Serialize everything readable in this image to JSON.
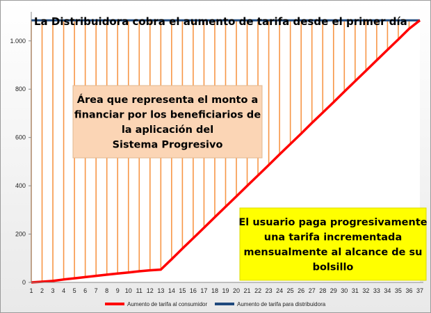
{
  "chart_data": {
    "type": "line",
    "title": "La Distribuidora cobra el aumento de tarifa desde el primer día",
    "x": [
      1,
      2,
      3,
      4,
      5,
      6,
      7,
      8,
      9,
      10,
      11,
      12,
      13,
      14,
      15,
      16,
      17,
      18,
      19,
      20,
      21,
      22,
      23,
      24,
      25,
      26,
      27,
      28,
      29,
      30,
      31,
      32,
      33,
      34,
      35,
      36,
      37
    ],
    "xlim": [
      1,
      37
    ],
    "ylim": [
      0,
      1080
    ],
    "yticks": [
      0,
      200,
      400,
      600,
      800,
      1000
    ],
    "ytick_labels": [
      "0",
      "200",
      "400",
      "600",
      "800",
      "1.000"
    ],
    "xtick_labels": [
      "1",
      "2",
      "3",
      "4",
      "5",
      "6",
      "7",
      "8",
      "9",
      "10",
      "11",
      "12",
      "13",
      "14",
      "15",
      "16",
      "17",
      "18",
      "19",
      "20",
      "21",
      "22",
      "23",
      "24",
      "25",
      "26",
      "27",
      "28",
      "29",
      "30",
      "31",
      "32",
      "33",
      "34",
      "35",
      "36",
      "37"
    ],
    "series": [
      {
        "name": "Aumento de tarifa al consumidor",
        "color": "#ff0000",
        "values": [
          0,
          3,
          6,
          12,
          17,
          22,
          27,
          32,
          37,
          41,
          46,
          50,
          53,
          96,
          140,
          183,
          226,
          270,
          313,
          356,
          400,
          443,
          486,
          530,
          573,
          616,
          660,
          703,
          746,
          790,
          833,
          876,
          920,
          963,
          1006,
          1050,
          1085
        ]
      },
      {
        "name": "Aumento de tarifa para distribuidora",
        "color": "#1f497d",
        "values": [
          1085,
          1085,
          1085,
          1085,
          1085,
          1085,
          1085,
          1085,
          1085,
          1085,
          1085,
          1085,
          1085,
          1085,
          1085,
          1085,
          1085,
          1085,
          1085,
          1085,
          1085,
          1085,
          1085,
          1085,
          1085,
          1085,
          1085,
          1085,
          1085,
          1085,
          1085,
          1085,
          1085,
          1085,
          1085,
          1085,
          1085
        ]
      }
    ],
    "fill_color": "#f79646",
    "legend_position": "bottom",
    "annotations": [
      {
        "lines": [
          "Área que representa el monto a",
          "financiar por los beneficiarios de",
          "la aplicación del",
          "Sistema Progresivo"
        ],
        "background": "#fbd5b5"
      },
      {
        "lines": [
          "El usuario paga progresivamente",
          "una tarifa incrementada",
          "mensualmente al alcance de su",
          "bolsillo"
        ],
        "background": "#ffff00"
      }
    ]
  }
}
